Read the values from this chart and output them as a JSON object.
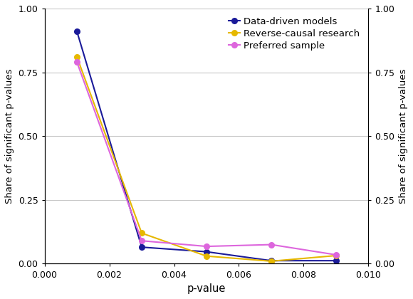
{
  "xlabel": "p-value",
  "ylabel": "Share of significant p-values",
  "xlim": [
    0.0,
    0.01
  ],
  "ylim": [
    0.0,
    1.0
  ],
  "xticks": [
    0.0,
    0.002,
    0.004,
    0.006,
    0.008,
    0.01
  ],
  "yticks": [
    0.0,
    0.25,
    0.5,
    0.75,
    1.0
  ],
  "series": [
    {
      "label": "Data-driven models",
      "color": "#1a1a99",
      "marker": "o",
      "x": [
        0.001,
        0.003,
        0.005,
        0.007,
        0.009
      ],
      "y": [
        0.91,
        0.065,
        0.047,
        0.012,
        0.012
      ]
    },
    {
      "label": "Reverse-causal research",
      "color": "#e6b800",
      "marker": "o",
      "x": [
        0.001,
        0.003,
        0.005,
        0.007,
        0.009
      ],
      "y": [
        0.81,
        0.12,
        0.03,
        0.01,
        0.032
      ]
    },
    {
      "label": "Preferred sample",
      "color": "#dd66dd",
      "marker": "o",
      "x": [
        0.001,
        0.003,
        0.005,
        0.007,
        0.009
      ],
      "y": [
        0.79,
        0.09,
        0.068,
        0.075,
        0.035
      ]
    }
  ],
  "background_color": "#ffffff",
  "grid_color": "#c8c8c8",
  "legend_loc": "upper right",
  "figsize": [
    5.8,
    4.2
  ],
  "dpi": 100
}
